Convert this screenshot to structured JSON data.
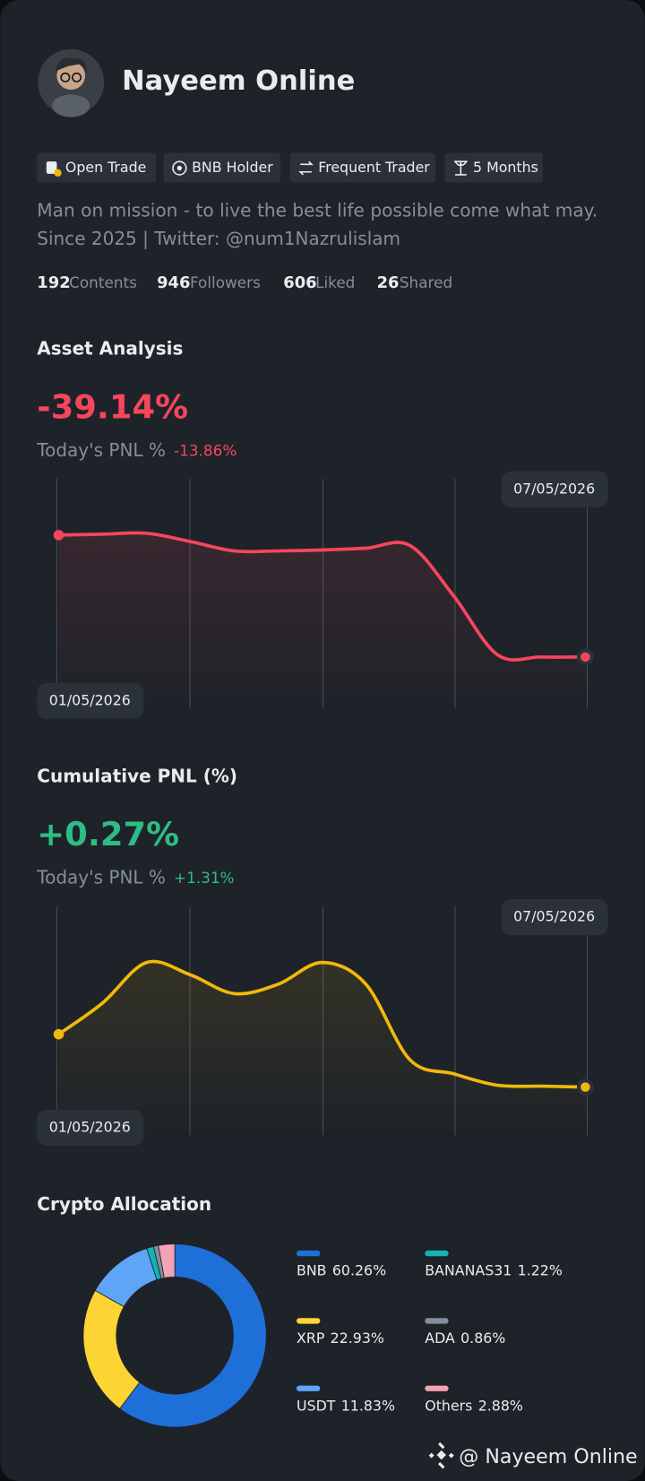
{
  "profile": {
    "name": "Nayeem Online",
    "tags": [
      "Open Trade",
      "BNB Holder",
      "Frequent Trader",
      "5 Months"
    ],
    "bio": [
      "Man on mission - to live the best life possible come what may.",
      "Since 2025 | Twitter: @num1Nazrulislam"
    ],
    "stats": [
      {
        "value": 192,
        "label": "Contents"
      },
      {
        "value": 946,
        "label": "Followers"
      },
      {
        "value": 606,
        "label": "Liked"
      },
      {
        "value": 26,
        "label": "Shared"
      }
    ]
  },
  "asset_analysis": {
    "title": "Asset Analysis",
    "value": "-39.14%",
    "today_label": "Today's PNL %",
    "today_value": "-13.86%",
    "chart": {
      "type": "line",
      "color": "#f6465d",
      "ylim": [
        0,
        100
      ],
      "values": [
        75.5,
        75.9,
        76.3,
        72.7,
        68.6,
        68.6,
        69.0,
        69.8,
        71.0,
        49.0,
        23.3,
        22.4,
        22.4
      ],
      "start_date": "01/05/2026",
      "end_date": "07/05/2026"
    }
  },
  "cumulative_pnl": {
    "title": "Cumulative PNL (%)",
    "value": "+0.27%",
    "today_label": "Today's PNL %",
    "today_value": "+1.31%",
    "chart": {
      "type": "line",
      "color": "#f0b90b",
      "ylim": [
        0,
        100
      ],
      "values": [
        44.2,
        57.9,
        75.6,
        70.2,
        62.0,
        66.1,
        75.6,
        66.1,
        33.1,
        26.9,
        21.9,
        21.5,
        21.1
      ],
      "start_date": "01/05/2026",
      "end_date": "07/05/2026"
    }
  },
  "allocation": {
    "title": "Crypto Allocation",
    "chart": {
      "type": "pie",
      "categories": [
        "BNB",
        "XRP",
        "USDT",
        "BANANAS31",
        "ADA",
        "Others"
      ],
      "values": [
        60.26,
        22.93,
        11.83,
        1.22,
        0.86,
        2.88
      ],
      "value_labels": [
        "60.26%",
        "22.93%",
        "11.83%",
        "1.22%",
        "0.86%",
        "2.88%"
      ],
      "colors": [
        "#1f6fd9",
        "#fcd535",
        "#5ea5f7",
        "#14b2b8",
        "#848e9c",
        "#f4a3b4"
      ]
    }
  },
  "watermark": "@ Nayeem Online"
}
